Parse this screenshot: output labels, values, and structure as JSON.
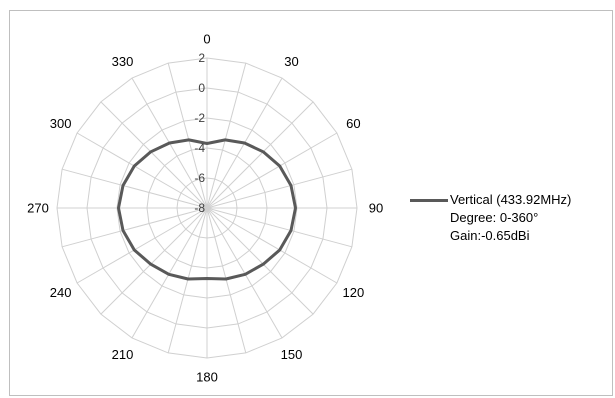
{
  "chart_data": {
    "type": "radar",
    "title": "",
    "angle_labels": [
      "0",
      "30",
      "60",
      "90",
      "120",
      "150",
      "180",
      "210",
      "240",
      "270",
      "300",
      "330"
    ],
    "angles": [
      0,
      15,
      30,
      45,
      60,
      75,
      90,
      105,
      120,
      135,
      150,
      165,
      180,
      195,
      210,
      225,
      240,
      255,
      270,
      285,
      300,
      315,
      330,
      345
    ],
    "radial_ticks": [
      -8,
      -6,
      -4,
      -2,
      0,
      2
    ],
    "radial_tick_labels": [
      "-8",
      "-6",
      "-4",
      "-2",
      "0",
      "2"
    ],
    "rlim": [
      -8,
      2
    ],
    "grid": true,
    "legend_position": "right",
    "series": [
      {
        "name": "Vertical (433.92MHz)",
        "color": "#595959",
        "values": [
          -3.7,
          -3.3,
          -3.0,
          -2.7,
          -2.4,
          -2.2,
          -2.1,
          -2.2,
          -2.4,
          -2.7,
          -2.9,
          -3.1,
          -3.3,
          -3.1,
          -2.9,
          -2.7,
          -2.4,
          -2.2,
          -2.1,
          -2.2,
          -2.4,
          -2.7,
          -3.0,
          -3.3
        ]
      }
    ],
    "legend_lines": [
      "Degree: 0-360°",
      "Gain:-0.65dBi"
    ]
  }
}
